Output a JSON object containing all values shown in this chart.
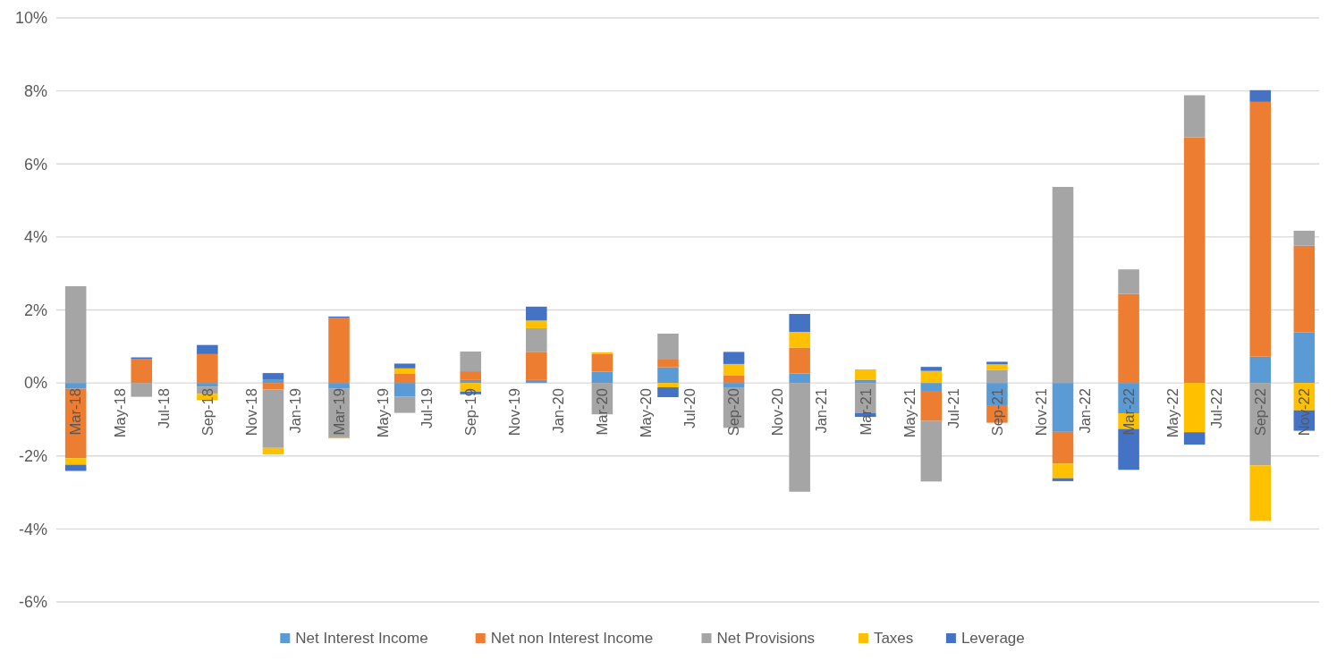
{
  "chart_data": {
    "type": "bar",
    "stacked": true,
    "categories": [
      "Mar-18",
      null,
      "May-18",
      null,
      "Jul-18",
      null,
      "Sep-18",
      null,
      "Nov-18",
      null,
      "Jan-19",
      null,
      "Mar-19",
      null,
      "May-19",
      null,
      "Jul-19",
      null,
      "Sep-19",
      null,
      "Nov-19",
      null,
      "Jan-20",
      null,
      "Mar-20",
      null,
      "May-20",
      null,
      "Jul-20",
      null,
      "Sep-20",
      null,
      "Nov-20",
      null,
      "Jan-21",
      null,
      "Mar-21",
      null,
      "May-21",
      null,
      "Jul-21",
      null,
      "Sep-21",
      null,
      "Nov-21",
      null,
      "Jan-22",
      null,
      "Mar-22",
      null,
      "May-22",
      null,
      "Jul-22",
      null,
      "Sep-22",
      null,
      "Nov-22"
    ],
    "series": [
      {
        "name": "Net Interest Income",
        "color": "#5b9bd5",
        "values": [
          -0.16,
          null,
          null,
          null,
          null,
          null,
          -0.1,
          null,
          null,
          0.1,
          null,
          null,
          -0.16,
          null,
          null,
          -0.37,
          null,
          null,
          0.08,
          null,
          null,
          0.08,
          null,
          null,
          0.31,
          null,
          null,
          0.43,
          null,
          null,
          -0.12,
          null,
          null,
          0.26,
          null,
          null,
          0.09,
          null,
          null,
          -0.24,
          null,
          null,
          -0.61,
          null,
          null,
          -1.34,
          null,
          null,
          -0.83,
          null,
          null,
          null,
          null,
          null,
          0.72,
          null,
          1.39
        ]
      },
      {
        "name": "Net non Interest Income",
        "color": "#ed7d31",
        "values": [
          -1.9,
          null,
          null,
          0.65,
          null,
          null,
          0.79,
          null,
          null,
          -0.18,
          null,
          null,
          1.79,
          null,
          null,
          0.25,
          null,
          null,
          0.24,
          null,
          null,
          0.76,
          null,
          null,
          0.48,
          null,
          null,
          0.21,
          null,
          null,
          0.21,
          null,
          null,
          0.71,
          null,
          null,
          null,
          null,
          null,
          -0.8,
          null,
          null,
          -0.48,
          null,
          null,
          -0.87,
          null,
          null,
          2.44,
          null,
          null,
          6.73,
          null,
          null,
          6.98,
          null,
          2.37
        ]
      },
      {
        "name": "Net Provisions",
        "color": "#a5a5a5",
        "values": [
          2.65,
          null,
          null,
          -0.38,
          null,
          null,
          -0.2,
          null,
          null,
          -1.6,
          null,
          null,
          -1.33,
          null,
          null,
          -0.45,
          null,
          null,
          0.54,
          null,
          null,
          0.66,
          null,
          null,
          -0.86,
          null,
          null,
          0.71,
          null,
          null,
          -1.11,
          null,
          null,
          -2.98,
          null,
          null,
          -0.83,
          null,
          null,
          -1.66,
          null,
          null,
          0.36,
          null,
          null,
          5.37,
          null,
          null,
          0.67,
          null,
          null,
          1.15,
          null,
          null,
          -2.26,
          null,
          0.41
        ]
      },
      {
        "name": "Taxes",
        "color": "#ffc000",
        "values": [
          -0.18,
          null,
          null,
          null,
          null,
          null,
          -0.17,
          null,
          null,
          -0.18,
          null,
          null,
          -0.03,
          null,
          null,
          0.15,
          null,
          null,
          -0.24,
          null,
          null,
          0.21,
          null,
          null,
          0.05,
          null,
          null,
          -0.12,
          null,
          null,
          0.31,
          null,
          null,
          0.43,
          null,
          null,
          0.28,
          null,
          null,
          0.33,
          null,
          null,
          0.15,
          null,
          null,
          -0.4,
          null,
          null,
          -0.43,
          null,
          null,
          -1.35,
          null,
          null,
          -1.52,
          null,
          -0.75
        ]
      },
      {
        "name": "Leverage",
        "color": "#4472c4",
        "values": [
          -0.17,
          null,
          null,
          0.05,
          null,
          null,
          0.25,
          null,
          null,
          0.17,
          null,
          null,
          0.03,
          null,
          null,
          0.13,
          null,
          null,
          -0.07,
          null,
          null,
          0.38,
          null,
          null,
          null,
          null,
          null,
          -0.27,
          null,
          null,
          0.33,
          null,
          null,
          0.49,
          null,
          null,
          -0.1,
          null,
          null,
          0.11,
          null,
          null,
          0.07,
          null,
          null,
          -0.08,
          null,
          null,
          -1.12,
          null,
          null,
          -0.34,
          null,
          null,
          0.32,
          null,
          -0.56
        ]
      }
    ],
    "ylim": [
      -6,
      10
    ],
    "yticks": [
      {
        "value": -6,
        "label": "-6%"
      },
      {
        "value": -4,
        "label": "-4%"
      },
      {
        "value": -2,
        "label": "-2%"
      },
      {
        "value": 0,
        "label": "0%"
      },
      {
        "value": 2,
        "label": "2%"
      },
      {
        "value": 4,
        "label": "4%"
      },
      {
        "value": 6,
        "label": "6%"
      },
      {
        "value": 8,
        "label": "8%"
      },
      {
        "value": 10,
        "label": "10%"
      }
    ],
    "grid": "y",
    "legend": "bottom"
  }
}
